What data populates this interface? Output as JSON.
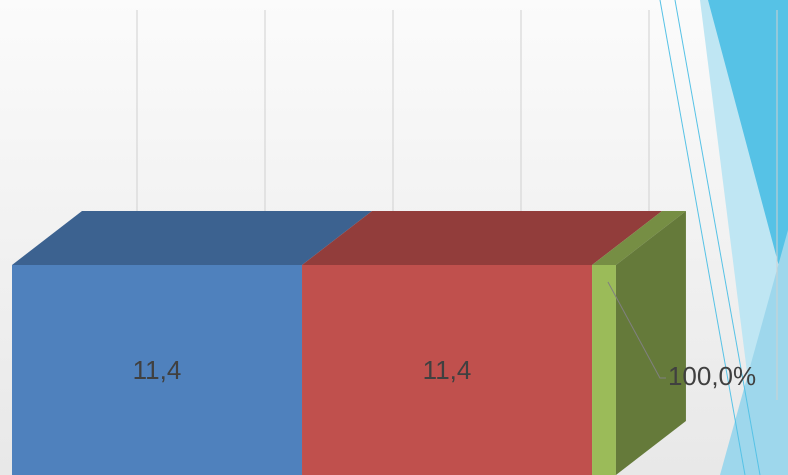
{
  "chart_data": {
    "type": "bar",
    "orientation": "horizontal",
    "stacked": true,
    "three_d": true,
    "series": [
      {
        "color": "#4f81bd",
        "values": [
          11.4
        ],
        "value_labels": [
          "11,4"
        ]
      },
      {
        "color": "#c0504d",
        "values": [
          11.4
        ],
        "value_labels": [
          "11,4"
        ]
      },
      {
        "color": "#9bbb59",
        "values": [
          0.94
        ]
      }
    ],
    "annotations": [
      "100,0%"
    ]
  }
}
